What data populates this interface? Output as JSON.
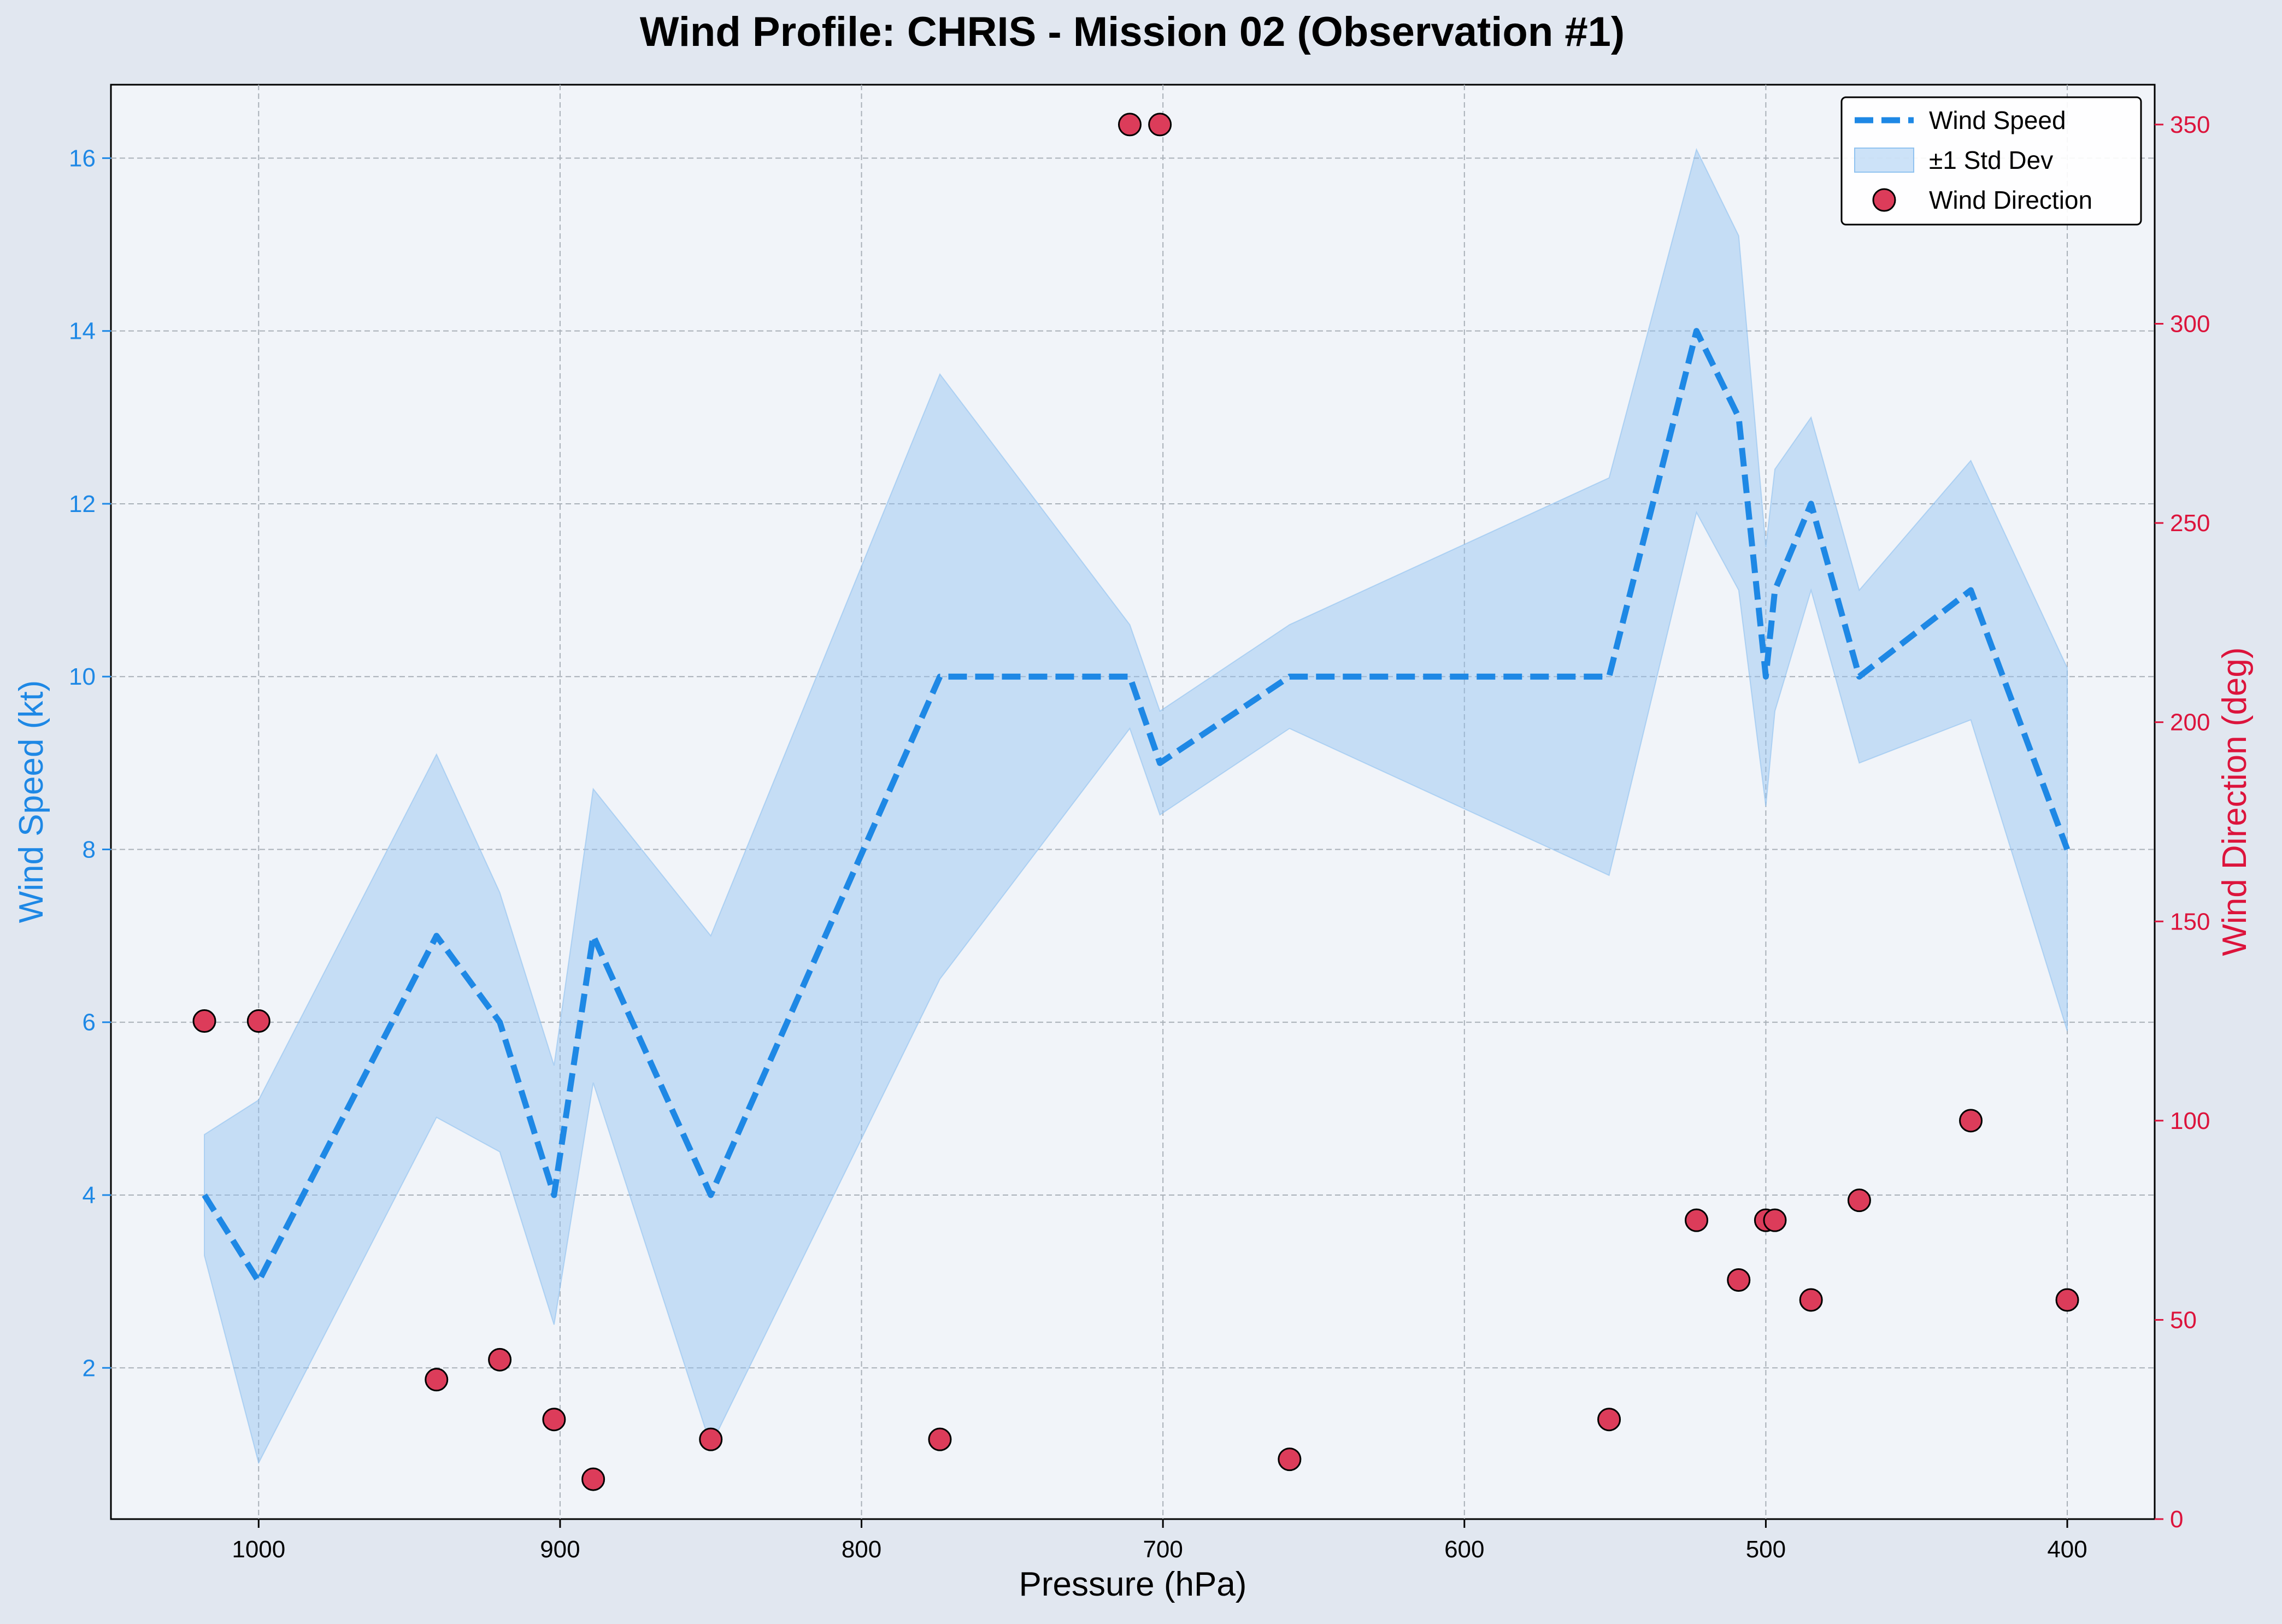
{
  "chart_data": {
    "type": "line",
    "title": "Wind Profile: CHRIS - Mission 02 (Observation #1)",
    "xlabel": "Pressure (hPa)",
    "ylabel_left": "Wind Speed (kt)",
    "ylabel_right": "Wind Direction (deg)",
    "x_reversed": true,
    "xlim": [
      1049,
      371
    ],
    "ylim_left": [
      0.25,
      16.85
    ],
    "ylim_right": [
      0,
      360
    ],
    "x_ticks": [
      1000,
      900,
      800,
      700,
      600,
      500,
      400
    ],
    "y_ticks_left": [
      2,
      4,
      6,
      8,
      10,
      12,
      14,
      16
    ],
    "y_ticks_right": [
      0,
      50,
      100,
      150,
      200,
      250,
      300,
      350
    ],
    "grid": true,
    "legend_position": "top-right",
    "pressure": [
      1018,
      1000,
      941,
      920,
      902,
      889,
      850,
      774,
      711,
      701,
      658,
      552,
      523,
      509,
      500,
      497,
      485,
      469,
      432,
      400
    ],
    "series": [
      {
        "name": "Wind Speed",
        "style": "dashed-line",
        "axis": "left",
        "color": "#1e88e5",
        "values": [
          4,
          3,
          7,
          6,
          4,
          7,
          4,
          10,
          10,
          9,
          10,
          10,
          14,
          13,
          10,
          11,
          12,
          10,
          11,
          8
        ]
      },
      {
        "name": "±1 Std Dev",
        "style": "band",
        "axis": "left",
        "color": "#90c2f0",
        "lower": [
          3.3,
          0.9,
          4.9,
          4.5,
          2.5,
          5.3,
          1.1,
          6.5,
          9.4,
          8.4,
          9.4,
          7.7,
          11.9,
          11.0,
          8.5,
          9.6,
          11.0,
          9.0,
          9.5,
          5.9
        ],
        "upper": [
          4.7,
          5.1,
          9.1,
          7.5,
          5.5,
          8.7,
          7.0,
          13.5,
          10.6,
          9.6,
          10.6,
          12.3,
          16.1,
          15.1,
          11.5,
          12.4,
          13.0,
          11.0,
          12.5,
          10.1
        ]
      },
      {
        "name": "Wind Direction",
        "style": "scatter",
        "axis": "right",
        "color": "#dc3c5a",
        "values": [
          125,
          125,
          35,
          40,
          25,
          10,
          20,
          20,
          350,
          350,
          15,
          25,
          75,
          60,
          75,
          75,
          55,
          80,
          100,
          55
        ]
      }
    ]
  }
}
